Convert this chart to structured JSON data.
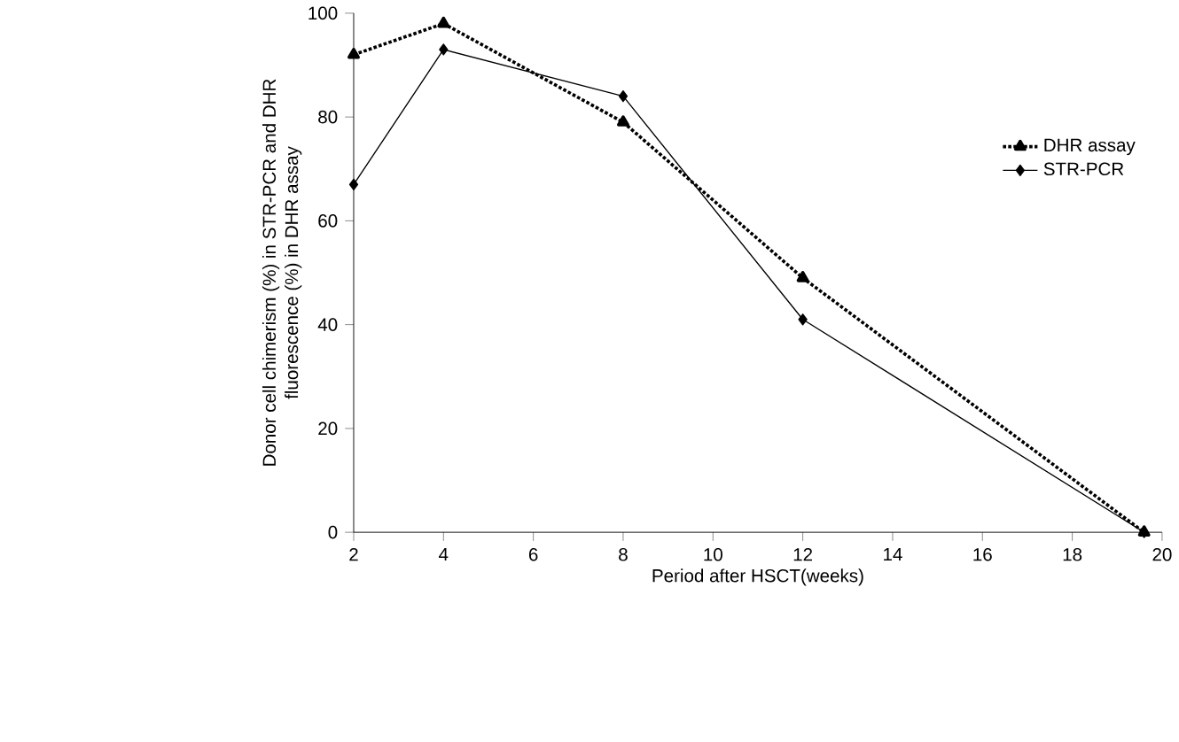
{
  "chart_data": {
    "type": "line",
    "xlabel": "Period after HSCT(weeks)",
    "ylabel": "Donor cell chimerism (%) in STR-PCR and DHR fluorescence (%) in DHR assay",
    "series": [
      {
        "name": "DHR assay",
        "color": "#000000",
        "x": [
          2,
          4,
          8,
          12,
          19.6
        ],
        "values": [
          92,
          98,
          79,
          49,
          0
        ],
        "marker": "triangle",
        "line_style": "dotted"
      },
      {
        "name": "STR-PCR",
        "color": "#000000",
        "x": [
          2,
          4,
          8,
          12,
          19.6
        ],
        "values": [
          67,
          93,
          84,
          41,
          0
        ],
        "marker": "diamond",
        "line_style": "solid"
      }
    ],
    "xlim": [
      2,
      20
    ],
    "ylim": [
      0,
      100
    ],
    "xticks": [
      2,
      4,
      6,
      8,
      10,
      12,
      14,
      16,
      18,
      20
    ],
    "yticks": [
      0,
      20,
      40,
      60,
      80,
      100
    ],
    "legend": "right",
    "grid": false
  }
}
